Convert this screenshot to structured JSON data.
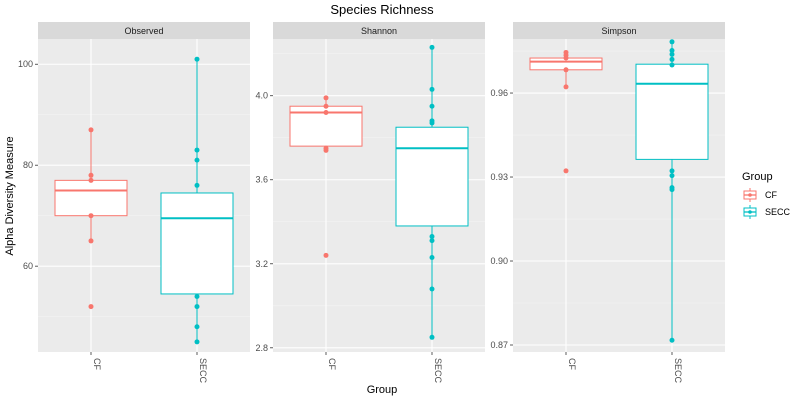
{
  "title": "Species Richness",
  "xlabel": "Group",
  "ylabel": "Alpha Diversity Measure",
  "legend": {
    "title": "Group",
    "placement": "right",
    "items": [
      {
        "label": "CF",
        "color": "#F8766D"
      },
      {
        "label": "SECC",
        "color": "#00BFC4"
      }
    ]
  },
  "colors": {
    "CF": "#F8766D",
    "SECC": "#00BFC4"
  },
  "chart_data": [
    {
      "type": "box",
      "facet": "Observed",
      "categories": [
        "CF",
        "SECC"
      ],
      "ylim": [
        43,
        105
      ],
      "yticks": [
        60,
        80,
        100
      ],
      "ytick_labels": [
        "60",
        "80",
        "100"
      ],
      "grid": true,
      "boxes": [
        {
          "group": "CF",
          "q1": 70,
          "median": 75,
          "q3": 77,
          "whisker_low": 65,
          "whisker_high": 87
        },
        {
          "group": "SECC",
          "q1": 54.5,
          "median": 69.5,
          "q3": 74.5,
          "whisker_low": 45,
          "whisker_high": 101
        }
      ],
      "points": {
        "CF": [
          52,
          65,
          70,
          77,
          78,
          87
        ],
        "SECC": [
          45,
          48,
          52,
          54,
          76,
          81,
          83,
          101
        ]
      }
    },
    {
      "type": "box",
      "facet": "Shannon",
      "categories": [
        "CF",
        "SECC"
      ],
      "ylim": [
        2.78,
        4.27
      ],
      "yticks": [
        2.8,
        3.2,
        3.6,
        4.0
      ],
      "ytick_labels": [
        "2.8",
        "3.2",
        "3.6",
        "4.0"
      ],
      "grid": true,
      "boxes": [
        {
          "group": "CF",
          "q1": 3.76,
          "median": 3.92,
          "q3": 3.95,
          "whisker_low": 3.74,
          "whisker_high": 3.99
        },
        {
          "group": "SECC",
          "q1": 3.38,
          "median": 3.75,
          "q3": 3.85,
          "whisker_low": 2.85,
          "whisker_high": 4.23
        }
      ],
      "points": {
        "CF": [
          3.24,
          3.74,
          3.75,
          3.92,
          3.95,
          3.99
        ],
        "SECC": [
          2.85,
          3.08,
          3.23,
          3.31,
          3.33,
          3.87,
          3.88,
          3.95,
          4.03,
          4.23
        ]
      }
    },
    {
      "type": "box",
      "facet": "Simpson",
      "categories": [
        "CF",
        "SECC"
      ],
      "ylim": [
        0.8675,
        0.9793
      ],
      "yticks": [
        0.87,
        0.9,
        0.93,
        0.96
      ],
      "ytick_labels": [
        "0.87",
        "0.90",
        "0.93",
        "0.96"
      ],
      "grid": true,
      "boxes": [
        {
          "group": "CF",
          "q1": 0.9683,
          "median": 0.9712,
          "q3": 0.9725,
          "whisker_low": 0.9622,
          "whisker_high": 0.9745
        },
        {
          "group": "SECC",
          "q1": 0.9363,
          "median": 0.9633,
          "q3": 0.9703,
          "whisker_low": 0.8717,
          "whisker_high": 0.9783
        }
      ],
      "points": {
        "CF": [
          0.9322,
          0.9622,
          0.9683,
          0.9725,
          0.9735,
          0.9745
        ],
        "SECC": [
          0.8717,
          0.9255,
          0.9262,
          0.9305,
          0.9322,
          0.97,
          0.972,
          0.9738,
          0.9752,
          0.9783
        ]
      }
    }
  ]
}
